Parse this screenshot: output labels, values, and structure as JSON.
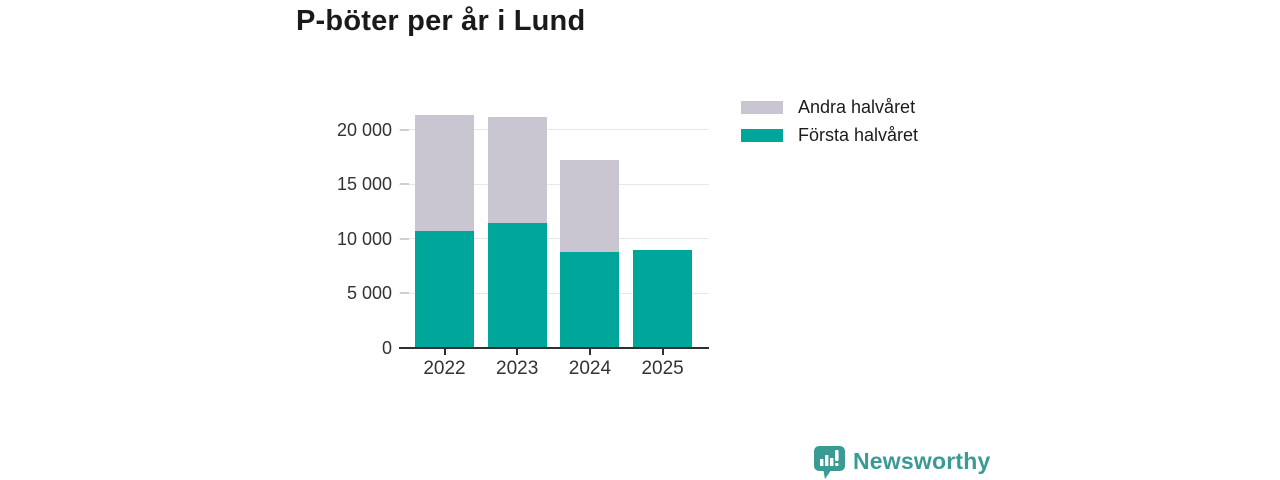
{
  "title": "P-böter per år i Lund",
  "chart_data": {
    "type": "bar",
    "stacked": true,
    "title": "P-böter per år i Lund",
    "categories": [
      "2022",
      "2023",
      "2024",
      "2025"
    ],
    "series": [
      {
        "name": "Första halvåret",
        "color": "#00a69a",
        "values": [
          10700,
          11400,
          8800,
          9000
        ]
      },
      {
        "name": "Andra halvåret",
        "color": "#c9c6d1",
        "values": [
          10700,
          9800,
          8400,
          0
        ]
      }
    ],
    "xlabel": "",
    "ylabel": "",
    "ylim": [
      0,
      22000
    ],
    "yticks": [
      0,
      5000,
      10000,
      15000,
      20000
    ],
    "ytick_labels": [
      "0",
      "5 000",
      "10 000",
      "15 000",
      "20 000"
    ],
    "grid": true,
    "legend_position": "top-right"
  },
  "legend": {
    "items": [
      {
        "label": "Andra halvåret",
        "color": "#c9c6d1"
      },
      {
        "label": "Första halvåret",
        "color": "#00a69a"
      }
    ]
  },
  "colors": {
    "teal": "#00a69a",
    "gray": "#c9c6d1",
    "grid": "#e8e8e8",
    "axis": "#303030",
    "brand": "#3a9a94"
  },
  "branding": {
    "name": "Newsworthy"
  }
}
